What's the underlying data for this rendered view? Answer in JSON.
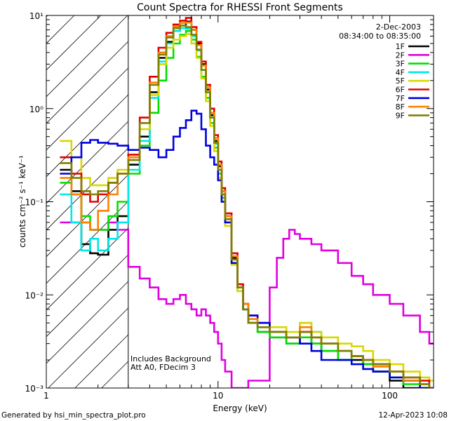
{
  "chart_data": {
    "type": "line",
    "title": "Count Spectra for RHESSI Front Segments",
    "xlabel": "Energy (keV)",
    "ylabel": "counts cm⁻² s⁻¹ keV⁻¹",
    "xscale": "log",
    "yscale": "log",
    "xlim": [
      1,
      180
    ],
    "ylim": [
      0.001,
      10
    ],
    "x_ticks": [
      {
        "value": 1,
        "label": "1"
      },
      {
        "value": 10,
        "label": "10"
      },
      {
        "value": 100,
        "label": "100"
      }
    ],
    "y_ticks": [
      {
        "value": 10,
        "label": "10¹"
      },
      {
        "value": 1,
        "label": "10⁰"
      },
      {
        "value": 0.1,
        "label": "10⁻¹"
      },
      {
        "value": 0.01,
        "label": "10⁻²"
      },
      {
        "value": 0.001,
        "label": "10⁻³"
      }
    ],
    "date": "2-Dec-2003",
    "time_range": "08:34:00 to 08:35:00",
    "shaded_region_keV": [
      1,
      3
    ],
    "annotations": [
      "Includes Background",
      "Att A0, FDecim 3"
    ],
    "legend_position": "top-right",
    "series": [
      {
        "name": "1F",
        "color": "#000000",
        "x": [
          1.2,
          1.4,
          1.6,
          1.8,
          2.0,
          2.3,
          2.6,
          3.0,
          3.5,
          4.0,
          4.5,
          5.0,
          5.5,
          6.0,
          6.5,
          7.0,
          7.5,
          8.0,
          8.5,
          9.0,
          9.5,
          10,
          10.5,
          11,
          12,
          13,
          14,
          15,
          17,
          20,
          25,
          30,
          35,
          40,
          50,
          60,
          70,
          80,
          100,
          120,
          150,
          170
        ],
        "y": [
          0.22,
          0.13,
          0.035,
          0.028,
          0.027,
          0.05,
          0.07,
          0.25,
          0.5,
          1.5,
          3.5,
          5.2,
          6.8,
          7.8,
          8.6,
          7.0,
          5.0,
          3.0,
          1.6,
          0.85,
          0.45,
          0.24,
          0.13,
          0.07,
          0.025,
          0.012,
          0.007,
          0.005,
          0.004,
          0.0035,
          0.003,
          0.004,
          0.003,
          0.0025,
          0.002,
          0.002,
          0.0018,
          0.0015,
          0.0012,
          0.001,
          0.001,
          0.001
        ]
      },
      {
        "name": "2F",
        "color": "#e000e0",
        "x": [
          1.2,
          1.4,
          1.6,
          1.8,
          2.0,
          2.3,
          2.6,
          3.0,
          3.5,
          4.0,
          4.5,
          5.0,
          5.5,
          6.0,
          6.5,
          7.0,
          7.5,
          8.0,
          8.5,
          9.0,
          9.5,
          10,
          10.5,
          11,
          12,
          13,
          14,
          15,
          17,
          20,
          22,
          24,
          26,
          28,
          30,
          35,
          40,
          50,
          60,
          70,
          80,
          100,
          120,
          150,
          170
        ],
        "y": [
          0.06,
          0.06,
          0.06,
          0.05,
          0.05,
          0.06,
          0.05,
          0.02,
          0.015,
          0.012,
          0.009,
          0.008,
          0.009,
          0.01,
          0.008,
          0.007,
          0.006,
          0.007,
          0.006,
          0.005,
          0.004,
          0.003,
          0.002,
          0.0015,
          0.001,
          0.001,
          0.001,
          0.0012,
          0.0012,
          0.012,
          0.025,
          0.04,
          0.05,
          0.045,
          0.04,
          0.035,
          0.03,
          0.022,
          0.016,
          0.013,
          0.01,
          0.008,
          0.006,
          0.004,
          0.003
        ]
      },
      {
        "name": "3F",
        "color": "#00e000",
        "x": [
          1.2,
          1.4,
          1.6,
          1.8,
          2.0,
          2.3,
          2.6,
          3.0,
          3.5,
          4.0,
          4.5,
          5.0,
          5.5,
          6.0,
          6.5,
          7.0,
          7.5,
          8.0,
          8.5,
          9.0,
          9.5,
          10,
          10.5,
          11,
          12,
          13,
          14,
          15,
          17,
          20,
          25,
          30,
          35,
          40,
          50,
          60,
          70,
          80,
          100,
          120,
          150,
          170
        ],
        "y": [
          0.16,
          0.12,
          0.07,
          0.05,
          0.05,
          0.07,
          0.1,
          0.2,
          0.4,
          0.9,
          2.0,
          3.5,
          5.0,
          6.2,
          6.8,
          5.5,
          3.6,
          2.2,
          1.3,
          0.7,
          0.38,
          0.2,
          0.11,
          0.06,
          0.022,
          0.011,
          0.007,
          0.005,
          0.004,
          0.0035,
          0.003,
          0.0035,
          0.003,
          0.0025,
          0.002,
          0.0022,
          0.0018,
          0.0015,
          0.0013,
          0.0011,
          0.001,
          0.001
        ]
      },
      {
        "name": "4F",
        "color": "#00e8e8",
        "x": [
          1.2,
          1.4,
          1.6,
          1.8,
          2.0,
          2.3,
          2.6,
          3.0,
          3.5,
          4.0,
          4.5,
          5.0,
          5.5,
          6.0,
          6.5,
          7.0,
          7.5,
          8.0,
          8.5,
          9.0,
          9.5,
          10,
          10.5,
          11,
          12,
          13,
          14,
          15,
          17,
          20,
          25,
          30,
          35,
          40,
          50,
          60,
          70,
          80,
          100,
          120,
          150,
          170
        ],
        "y": [
          0.12,
          0.06,
          0.03,
          0.04,
          0.03,
          0.04,
          0.06,
          0.22,
          0.45,
          1.3,
          3.2,
          5.0,
          6.8,
          7.3,
          7.2,
          6.0,
          4.2,
          2.6,
          1.5,
          0.8,
          0.42,
          0.22,
          0.12,
          0.065,
          0.024,
          0.012,
          0.007,
          0.005,
          0.0045,
          0.004,
          0.0035,
          0.005,
          0.004,
          0.003,
          0.0025,
          0.0022,
          0.002,
          0.0018,
          0.0015,
          0.0012,
          0.0011,
          0.001
        ]
      },
      {
        "name": "5F",
        "color": "#d8d800",
        "x": [
          1.2,
          1.4,
          1.6,
          1.8,
          2.0,
          2.3,
          2.6,
          3.0,
          3.5,
          4.0,
          4.5,
          5.0,
          5.5,
          6.0,
          6.5,
          7.0,
          7.5,
          8.0,
          8.5,
          9.0,
          9.5,
          10,
          10.5,
          11,
          12,
          13,
          14,
          15,
          17,
          20,
          25,
          30,
          35,
          40,
          50,
          60,
          70,
          80,
          100,
          120,
          150,
          170
        ],
        "y": [
          0.45,
          0.3,
          0.18,
          0.15,
          0.15,
          0.18,
          0.22,
          0.3,
          0.6,
          1.4,
          3.0,
          4.5,
          5.5,
          6.0,
          6.3,
          5.0,
          3.5,
          2.1,
          1.2,
          0.65,
          0.35,
          0.18,
          0.1,
          0.055,
          0.021,
          0.011,
          0.008,
          0.006,
          0.005,
          0.0045,
          0.004,
          0.005,
          0.004,
          0.0035,
          0.003,
          0.0028,
          0.0025,
          0.002,
          0.0018,
          0.0015,
          0.0013,
          0.0012
        ]
      },
      {
        "name": "6F",
        "color": "#e00000",
        "x": [
          1.2,
          1.4,
          1.6,
          1.8,
          2.0,
          2.3,
          2.6,
          3.0,
          3.5,
          4.0,
          4.5,
          5.0,
          5.5,
          6.0,
          6.5,
          7.0,
          7.5,
          8.0,
          8.5,
          9.0,
          9.5,
          10,
          10.5,
          11,
          12,
          13,
          14,
          15,
          17,
          20,
          25,
          30,
          35,
          40,
          50,
          60,
          70,
          80,
          100,
          120,
          150,
          170
        ],
        "y": [
          0.3,
          0.2,
          0.12,
          0.1,
          0.12,
          0.16,
          0.2,
          0.32,
          0.8,
          2.2,
          4.5,
          6.5,
          8.0,
          8.8,
          9.4,
          7.5,
          5.2,
          3.2,
          1.8,
          1.0,
          0.52,
          0.27,
          0.14,
          0.075,
          0.028,
          0.013,
          0.008,
          0.006,
          0.005,
          0.004,
          0.0035,
          0.004,
          0.0035,
          0.003,
          0.0025,
          0.0022,
          0.002,
          0.0018,
          0.0015,
          0.0013,
          0.0012,
          0.001
        ]
      },
      {
        "name": "7F",
        "color": "#0000e0",
        "x": [
          1.2,
          1.4,
          1.6,
          1.8,
          2.0,
          2.3,
          2.6,
          3.0,
          3.5,
          4.0,
          4.5,
          5.0,
          5.5,
          6.0,
          6.5,
          7.0,
          7.5,
          8.0,
          8.5,
          9.0,
          9.5,
          10,
          10.5,
          11,
          12,
          13,
          14,
          15,
          17,
          20,
          25,
          30,
          35,
          40,
          50,
          60,
          70,
          80,
          100,
          120,
          150,
          170
        ],
        "y": [
          0.2,
          0.3,
          0.43,
          0.46,
          0.43,
          0.42,
          0.4,
          0.36,
          0.38,
          0.36,
          0.3,
          0.36,
          0.5,
          0.62,
          0.75,
          0.95,
          0.88,
          0.6,
          0.4,
          0.3,
          0.25,
          0.17,
          0.1,
          0.06,
          0.022,
          0.012,
          0.007,
          0.006,
          0.005,
          0.004,
          0.0035,
          0.003,
          0.0025,
          0.002,
          0.002,
          0.0018,
          0.0016,
          0.0015,
          0.0013,
          0.0012,
          0.001,
          0.001
        ]
      },
      {
        "name": "8F",
        "color": "#ff8000",
        "x": [
          1.2,
          1.4,
          1.6,
          1.8,
          2.0,
          2.3,
          2.6,
          3.0,
          3.5,
          4.0,
          4.5,
          5.0,
          5.5,
          6.0,
          6.5,
          7.0,
          7.5,
          8.0,
          8.5,
          9.0,
          9.5,
          10,
          10.5,
          11,
          12,
          13,
          14,
          15,
          17,
          20,
          25,
          30,
          35,
          40,
          50,
          60,
          70,
          80,
          100,
          120,
          150,
          170
        ],
        "y": [
          0.18,
          0.12,
          0.06,
          0.05,
          0.08,
          0.12,
          0.2,
          0.3,
          0.7,
          1.9,
          4.0,
          6.0,
          7.6,
          8.3,
          8.4,
          7.0,
          4.8,
          2.9,
          1.7,
          0.9,
          0.48,
          0.25,
          0.13,
          0.07,
          0.026,
          0.012,
          0.008,
          0.0055,
          0.0045,
          0.004,
          0.0035,
          0.0045,
          0.0035,
          0.003,
          0.0025,
          0.0022,
          0.002,
          0.0017,
          0.0015,
          0.0012,
          0.0011,
          0.001
        ]
      },
      {
        "name": "9F",
        "color": "#808000",
        "x": [
          1.2,
          1.4,
          1.6,
          1.8,
          2.0,
          2.3,
          2.6,
          3.0,
          3.5,
          4.0,
          4.5,
          5.0,
          5.5,
          6.0,
          6.5,
          7.0,
          7.5,
          8.0,
          8.5,
          9.0,
          9.5,
          10,
          10.5,
          11,
          12,
          13,
          14,
          15,
          17,
          20,
          25,
          30,
          35,
          40,
          50,
          60,
          70,
          80,
          100,
          120,
          150,
          170
        ],
        "y": [
          0.26,
          0.18,
          0.13,
          0.12,
          0.13,
          0.16,
          0.2,
          0.28,
          0.7,
          1.8,
          3.8,
          5.8,
          7.3,
          7.8,
          7.5,
          6.2,
          4.3,
          2.6,
          1.5,
          0.8,
          0.43,
          0.22,
          0.12,
          0.065,
          0.024,
          0.012,
          0.007,
          0.005,
          0.0045,
          0.004,
          0.0035,
          0.004,
          0.0035,
          0.003,
          0.0025,
          0.0022,
          0.002,
          0.0018,
          0.0015,
          0.0013,
          0.0011,
          0.001
        ]
      }
    ]
  },
  "footer": {
    "generated_by": "Generated by hsi_min_spectra_plot.pro",
    "timestamp": "12-Apr-2023 10:08"
  }
}
